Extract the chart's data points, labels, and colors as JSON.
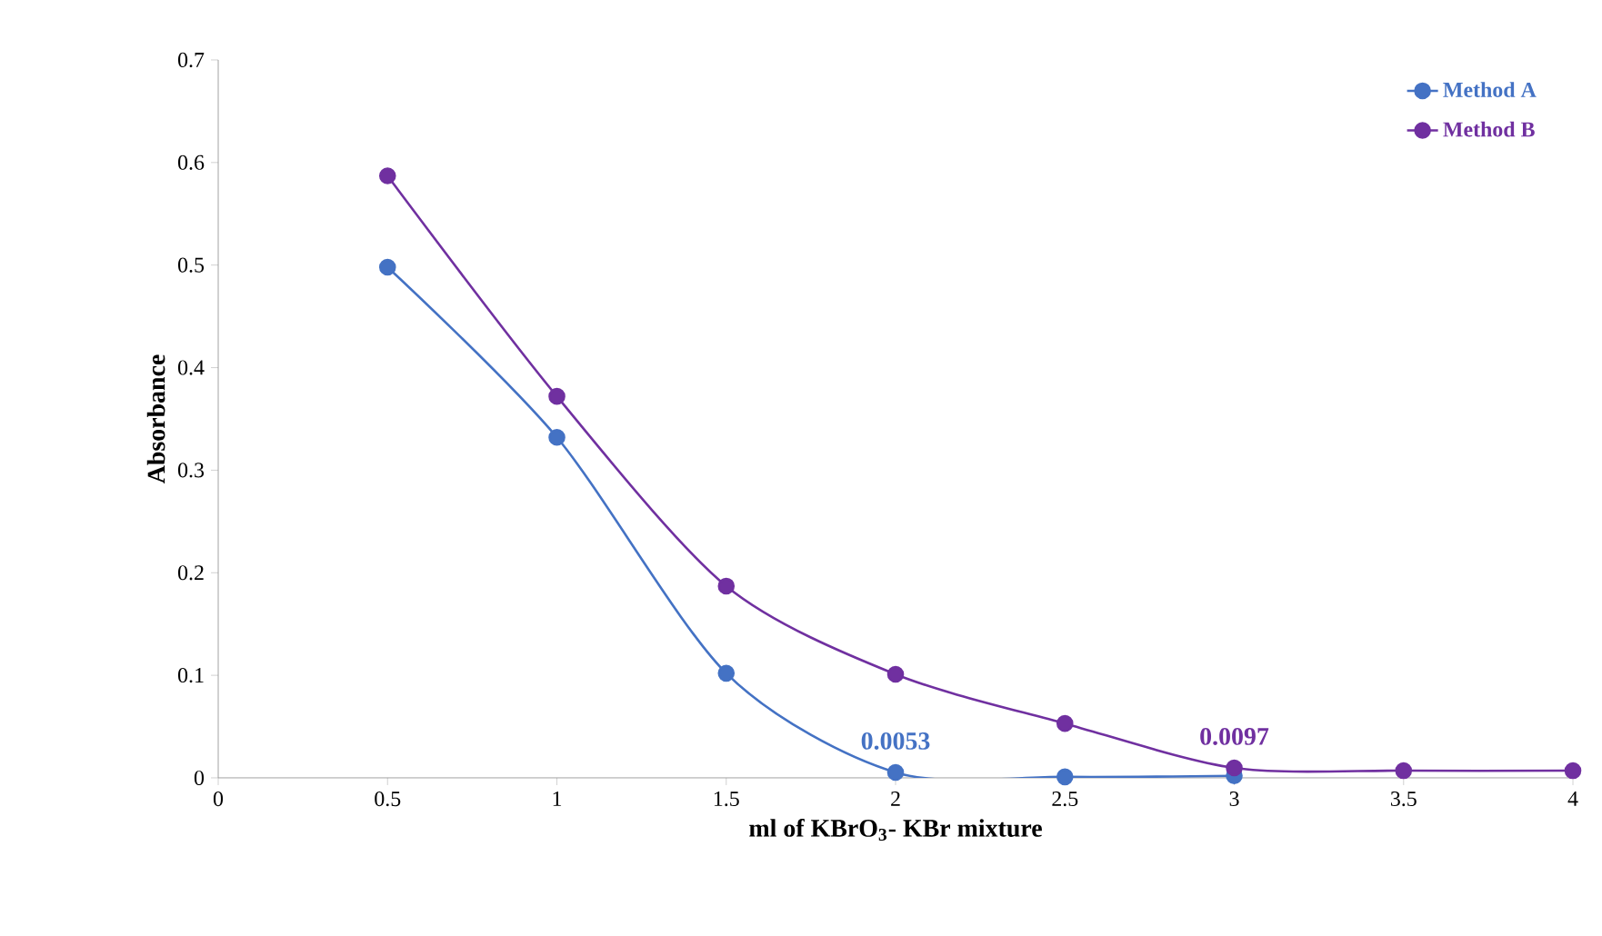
{
  "chart_data": {
    "type": "line",
    "xlabel": "ml of KBrO$_{3}$- KBr mixture",
    "ylabel": "Absorbance",
    "xlim": [
      0,
      4
    ],
    "xticks": [
      0,
      0.5,
      1,
      1.5,
      2,
      2.5,
      3,
      3.5,
      4
    ],
    "ylim": [
      0,
      0.7
    ],
    "yticks": [
      0,
      0.1,
      0.2,
      0.3,
      0.4,
      0.5,
      0.6,
      0.7
    ],
    "grid": false,
    "legend": "top right",
    "marker": "circle",
    "line_style": "solid",
    "series": [
      {
        "name": "Method A",
        "color": "#4472c4",
        "x": [
          0.5,
          1,
          1.5,
          2,
          2.5,
          3
        ],
        "values": [
          0.498,
          0.332,
          0.102,
          0.0053,
          0.001,
          0.002
        ]
      },
      {
        "name": "Method B",
        "color": "#7030a0",
        "x": [
          0.5,
          1,
          1.5,
          2,
          2.5,
          3,
          3.5,
          4
        ],
        "values": [
          0.587,
          0.372,
          0.187,
          0.101,
          0.053,
          0.0097,
          0.007,
          0.007
        ]
      }
    ],
    "annotations": [
      {
        "text": "0.0053",
        "x": 2,
        "y": 0.0053
      },
      {
        "text": "0.0097",
        "x": 3,
        "y": 0.0097
      }
    ]
  }
}
